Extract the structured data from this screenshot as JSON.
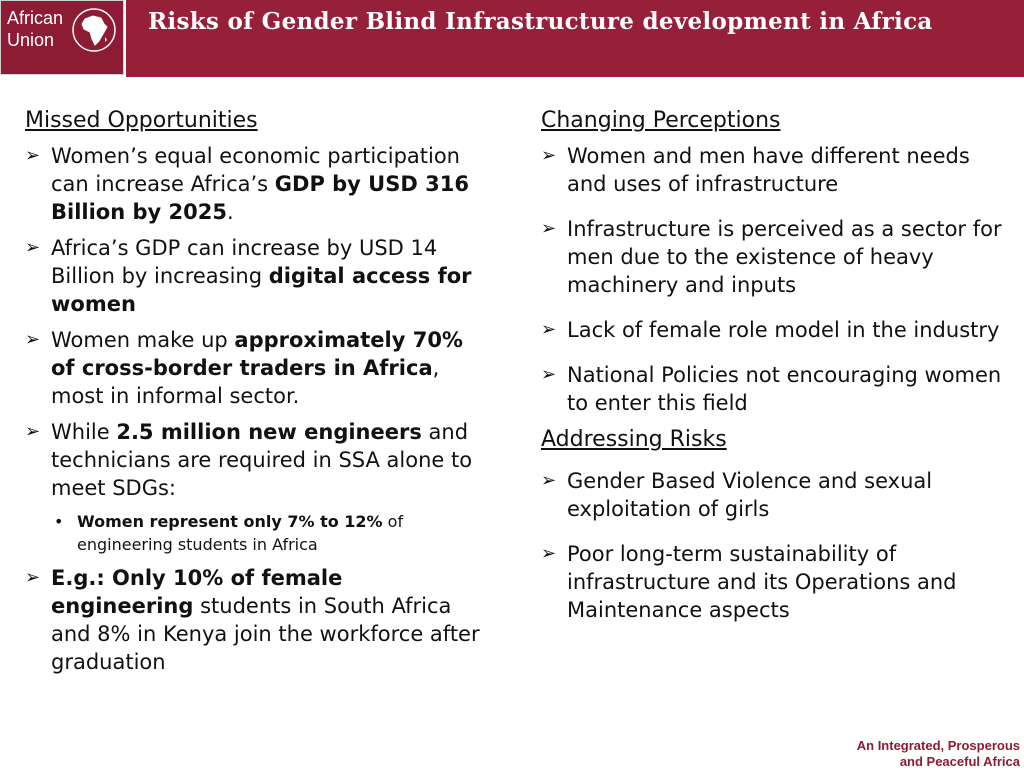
{
  "header": {
    "logo_line1": "African",
    "logo_line2": "Union",
    "title": "Risks of Gender Blind Infrastructure development in Africa",
    "colors": {
      "title_bar": "#961f3a",
      "logo_bg": "#8c1b33",
      "text": "#ffffff"
    }
  },
  "left": {
    "heading": "Missed Opportunities",
    "items": [
      {
        "t1": "Women’s equal economic participation can increase Africa’s ",
        "b1": "GDP by USD 316 Billion by 2025",
        "t2": "."
      },
      {
        "t1": "Africa’s GDP can increase by USD 14 Billion by increasing ",
        "b1": "digital access for women",
        "t2": ""
      },
      {
        "t1": "Women make up ",
        "b1": "approximately 70% of cross-border traders in Africa",
        "t2": ", most in informal sector."
      },
      {
        "t1": "While ",
        "b1": "2.5 million new engineers",
        "t2": " and technicians are required in SSA alone to meet SDGs:",
        "sub_b": "Women represent only 7% to 12%",
        "sub_t": " of engineering students in Africa"
      },
      {
        "b1": "E.g.: Only 10% of female engineering",
        "t2": " students in South Africa and 8% in Kenya join the workforce after graduation"
      }
    ]
  },
  "right": {
    "heading1": "Changing Perceptions",
    "items1": [
      "Women and men have different needs and uses of infrastructure",
      "Infrastructure is perceived as a sector for men due to the existence of heavy machinery and inputs",
      "Lack of female role model in the industry",
      "National Policies not encouraging women to enter this field"
    ],
    "heading2": "Addressing Risks",
    "items2": [
      "Gender Based Violence and sexual exploitation of girls",
      "Poor long-term sustainability of infrastructure and its Operations and Maintenance aspects"
    ]
  },
  "footer": {
    "line1": "An Integrated, Prosperous",
    "line2": "and Peaceful Africa"
  }
}
